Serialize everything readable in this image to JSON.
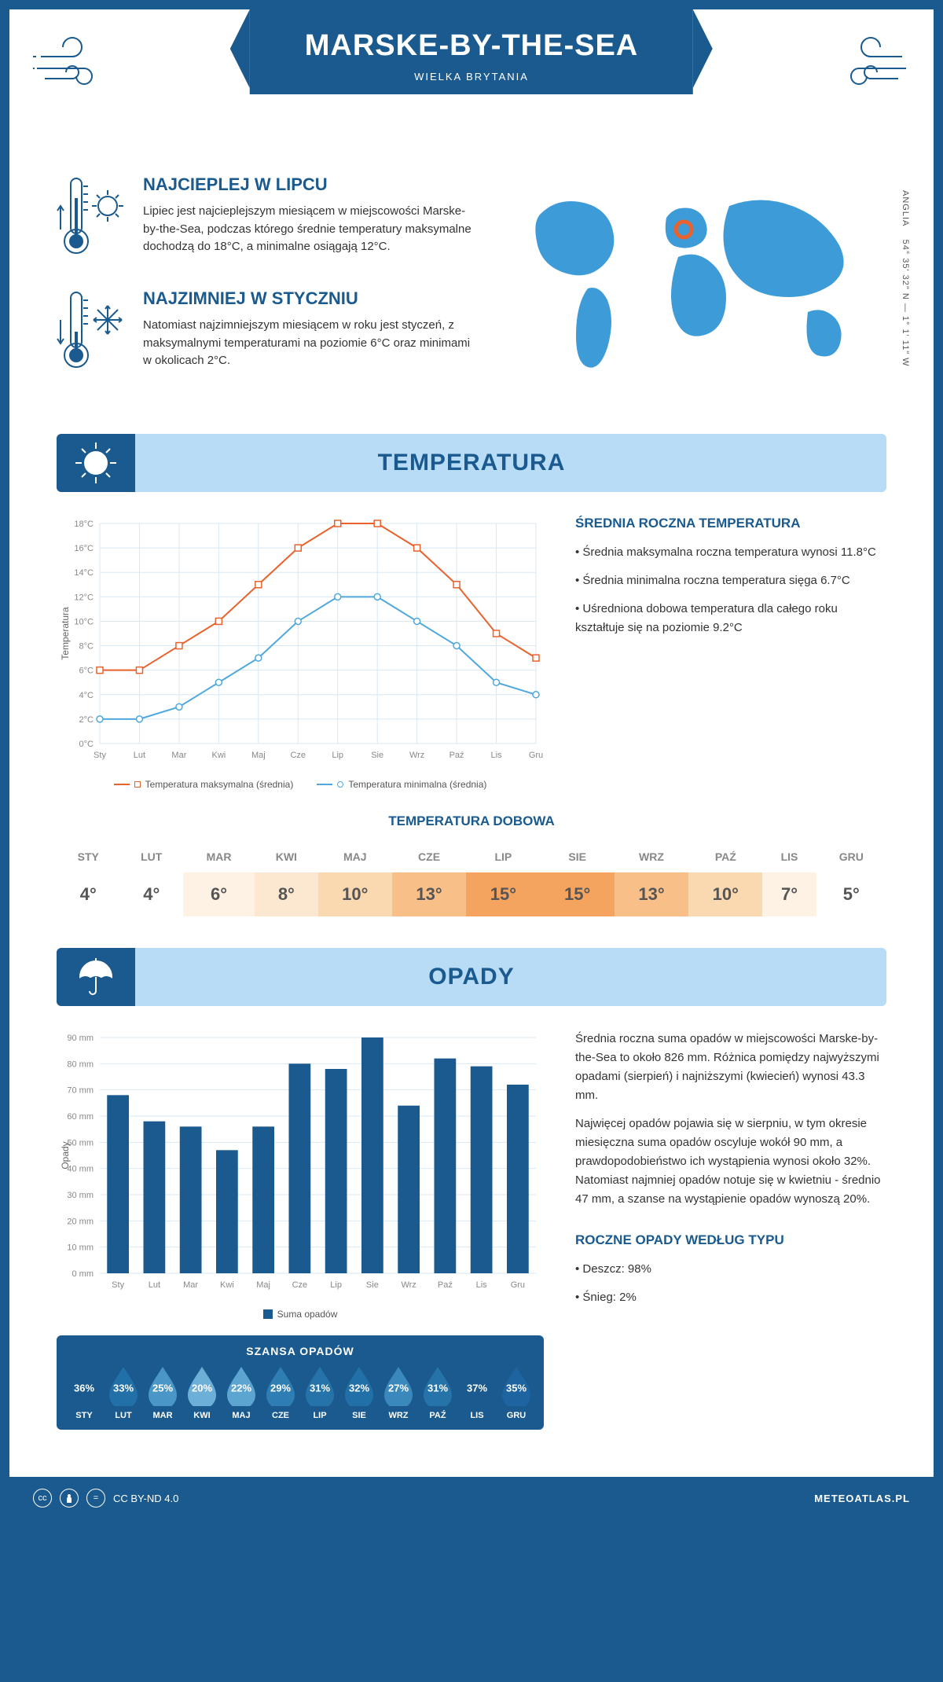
{
  "header": {
    "title": "MARSKE-BY-THE-SEA",
    "subtitle": "WIELKA BRYTANIA"
  },
  "coords": "54° 35' 32\" N — 1° 1' 11\" W",
  "region_label": "ANGLIA",
  "warmest": {
    "heading": "NAJCIEPLEJ W LIPCU",
    "body": "Lipiec jest najcieplejszym miesiącem w miejscowości Marske-by-the-Sea, podczas którego średnie temperatury maksymalne dochodzą do 18°C, a minimalne osiągają 12°C."
  },
  "coldest": {
    "heading": "NAJZIMNIEJ W STYCZNIU",
    "body": "Natomiast najzimniejszym miesiącem w roku jest styczeń, z maksymalnymi temperaturami na poziomie 6°C oraz minimami w okolicach 2°C."
  },
  "temp_section": {
    "title": "TEMPERATURA",
    "sidebar_title": "ŚREDNIA ROCZNA TEMPERATURA",
    "bullet1": "• Średnia maksymalna roczna temperatura wynosi 11.8°C",
    "bullet2": "• Średnia minimalna roczna temperatura sięga 6.7°C",
    "bullet3": "• Uśredniona dobowa temperatura dla całego roku kształtuje się na poziomie 9.2°C",
    "daily_title": "TEMPERATURA DOBOWA"
  },
  "temp_chart": {
    "type": "line",
    "months": [
      "Sty",
      "Lut",
      "Mar",
      "Kwi",
      "Maj",
      "Cze",
      "Lip",
      "Sie",
      "Wrz",
      "Paź",
      "Lis",
      "Gru"
    ],
    "max_series": [
      6,
      6,
      8,
      10,
      13,
      16,
      18,
      18,
      16,
      13,
      9,
      7
    ],
    "min_series": [
      2,
      2,
      3,
      5,
      7,
      10,
      12,
      12,
      10,
      8,
      5,
      4
    ],
    "max_color": "#e8622d",
    "min_color": "#4fa8dd",
    "grid_color": "#d8e8f4",
    "ylim": [
      0,
      18
    ],
    "ytick_step": 2,
    "y_label": "Temperatura",
    "legend_max": "Temperatura maksymalna (średnia)",
    "legend_min": "Temperatura minimalna (średnia)"
  },
  "daily_temps": {
    "months": [
      "STY",
      "LUT",
      "MAR",
      "KWI",
      "MAJ",
      "CZE",
      "LIP",
      "SIE",
      "WRZ",
      "PAŹ",
      "LIS",
      "GRU"
    ],
    "values": [
      "4°",
      "4°",
      "6°",
      "8°",
      "10°",
      "13°",
      "15°",
      "15°",
      "13°",
      "10°",
      "7°",
      "5°"
    ],
    "bg_colors": [
      "#ffffff",
      "#ffffff",
      "#fdf2e4",
      "#fce8d0",
      "#fbd9b0",
      "#f9bf88",
      "#f5a45f",
      "#f5a45f",
      "#f9bf88",
      "#fbd9b0",
      "#fdf2e4",
      "#ffffff"
    ]
  },
  "precip_section": {
    "title": "OPADY",
    "para1": "Średnia roczna suma opadów w miejscowości Marske-by-the-Sea to około 826 mm. Różnica pomiędzy najwyższymi opadami (sierpień) i najniższymi (kwiecień) wynosi 43.3 mm.",
    "para2": "Najwięcej opadów pojawia się w sierpniu, w tym okresie miesięczna suma opadów oscyluje wokół 90 mm, a prawdopodobieństwo ich wystąpienia wynosi około 32%. Natomiast najmniej opadów notuje się w kwietniu - średnio 47 mm, a szanse na wystąpienie opadów wynoszą 20%.",
    "by_type_title": "ROCZNE OPADY WEDŁUG TYPU",
    "by_type_1": "• Deszcz: 98%",
    "by_type_2": "• Śnieg: 2%"
  },
  "precip_chart": {
    "type": "bar",
    "months": [
      "Sty",
      "Lut",
      "Mar",
      "Kwi",
      "Maj",
      "Cze",
      "Lip",
      "Sie",
      "Wrz",
      "Paź",
      "Lis",
      "Gru"
    ],
    "values": [
      68,
      58,
      56,
      47,
      56,
      80,
      78,
      90,
      64,
      82,
      79,
      72
    ],
    "bar_color": "#1a5a8e",
    "grid_color": "#d8e8f4",
    "ylim": [
      0,
      90
    ],
    "ytick_step": 10,
    "y_label": "Opady",
    "legend": "Suma opadów"
  },
  "rain_chance": {
    "title": "SZANSA OPADÓW",
    "months": [
      "STY",
      "LUT",
      "MAR",
      "KWI",
      "MAJ",
      "CZE",
      "LIP",
      "SIE",
      "WRZ",
      "PAŹ",
      "LIS",
      "GRU"
    ],
    "pct": [
      "36%",
      "33%",
      "25%",
      "20%",
      "22%",
      "29%",
      "31%",
      "32%",
      "27%",
      "31%",
      "37%",
      "35%"
    ],
    "colors": [
      "#1a5a8e",
      "#2270a8",
      "#4a96c6",
      "#6cb0d8",
      "#5ba5d0",
      "#2e7eb4",
      "#2673aa",
      "#2270a8",
      "#3a88bc",
      "#2673aa",
      "#1a5a8e",
      "#1e64a0"
    ]
  },
  "footer": {
    "license": "CC BY-ND 4.0",
    "brand": "METEOATLAS.PL"
  }
}
